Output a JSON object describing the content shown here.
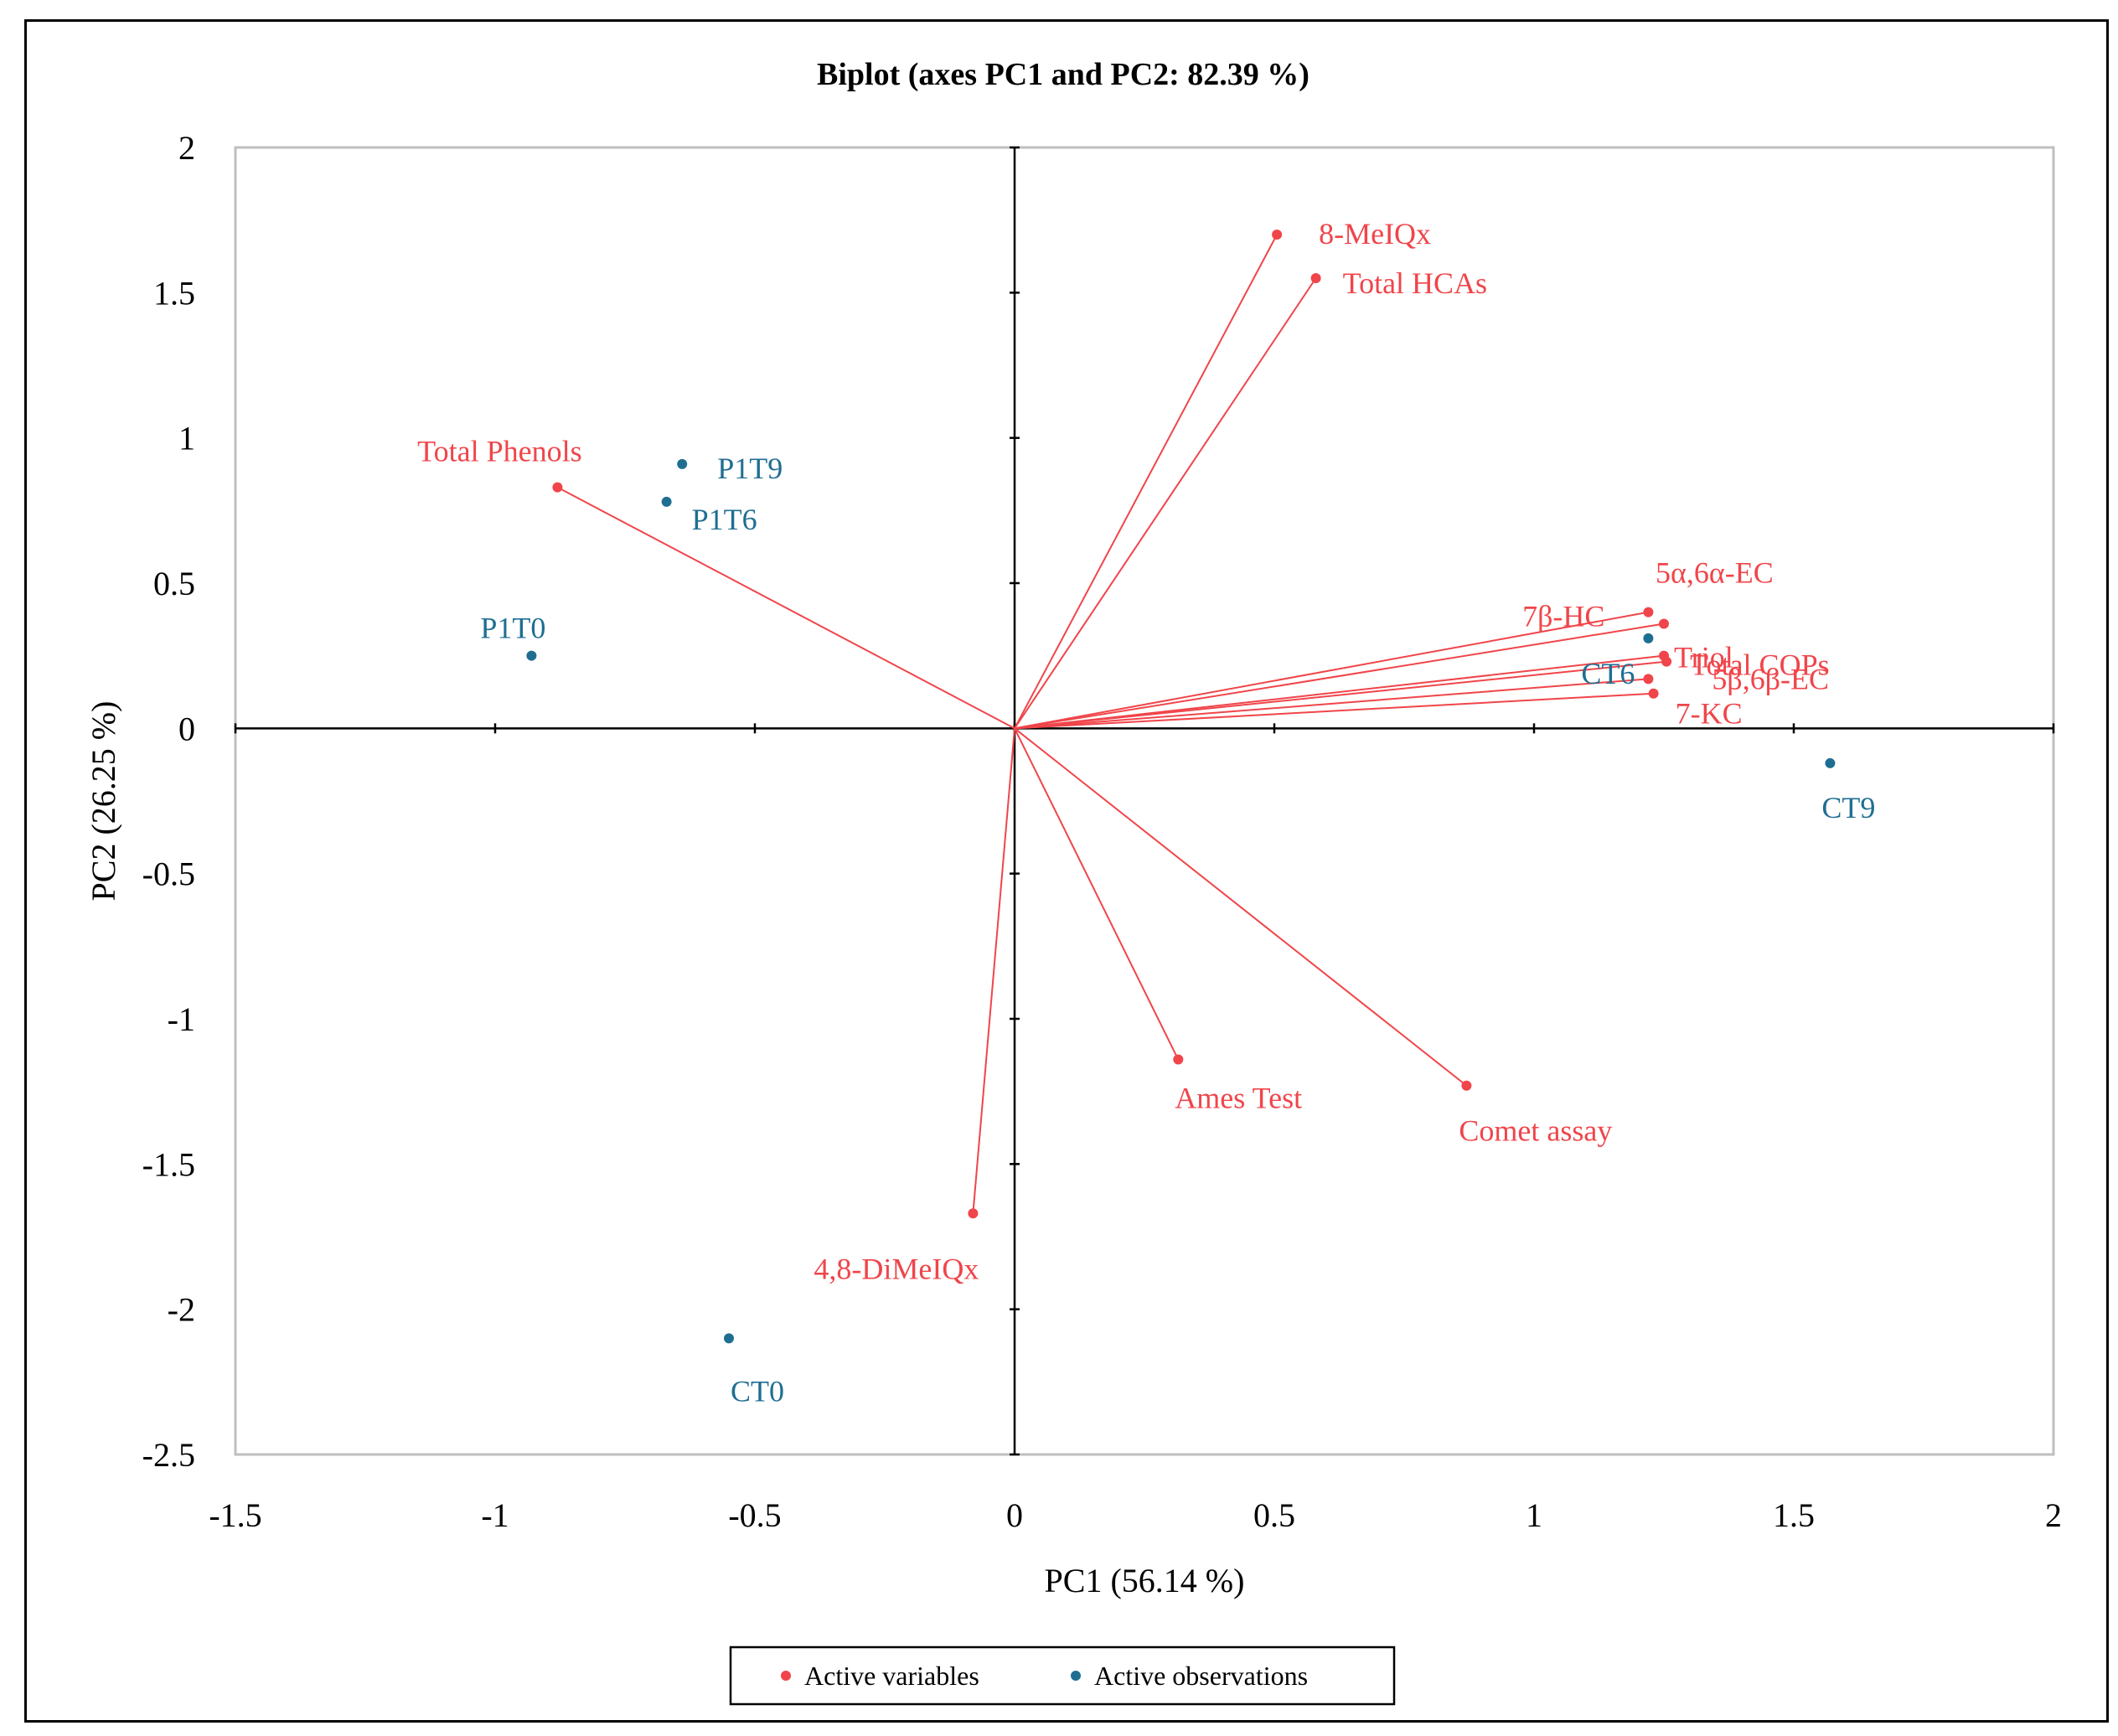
{
  "chart_data": {
    "type": "scatter",
    "title": "Biplot (axes PC1 and PC2: 82.39 %)",
    "xlabel": "PC1 (56.14 %)",
    "ylabel": "PC2 (26.25 %)",
    "xlim": [
      -1.5,
      2
    ],
    "ylim": [
      -2.5,
      2
    ],
    "x_ticks": [
      -1.5,
      -1,
      -0.5,
      0,
      0.5,
      1,
      1.5,
      2
    ],
    "x_tick_labels": [
      "-1.5",
      "-1",
      "-0.5",
      "0",
      "0.5",
      "1",
      "1.5",
      "2"
    ],
    "y_ticks": [
      -2.5,
      -2,
      -1.5,
      -1,
      -0.5,
      0,
      0.5,
      1,
      1.5,
      2
    ],
    "y_tick_labels": [
      "-2.5",
      "-2",
      "-1.5",
      "-1",
      "-0.5",
      "0",
      "0.5",
      "1",
      "1.5",
      "2"
    ],
    "legend": {
      "placement": "bottom-center",
      "items": [
        {
          "label": "Active variables",
          "color": "#f0454a"
        },
        {
          "label": "Active observations",
          "color": "#1f6e92"
        }
      ]
    },
    "series": [
      {
        "name": "Active variables",
        "color": "#f0454a",
        "vectors_from_origin": true,
        "points": [
          {
            "label": "8-MeIQx",
            "x": 0.505,
            "y": 1.7
          },
          {
            "label": "Total HCAs",
            "x": 0.58,
            "y": 1.55
          },
          {
            "label": "Total Phenols",
            "x": -0.88,
            "y": 0.83
          },
          {
            "label": "5α,6α-EC",
            "x": 1.25,
            "y": 0.36
          },
          {
            "label": "7β-HC",
            "x": 1.22,
            "y": 0.4
          },
          {
            "label": "Triol",
            "x": 1.25,
            "y": 0.25
          },
          {
            "label": "Total COPs",
            "x": 1.255,
            "y": 0.23
          },
          {
            "label": "5β,6β-EC",
            "x": 1.22,
            "y": 0.17
          },
          {
            "label": "7-KC",
            "x": 1.23,
            "y": 0.12
          },
          {
            "label": "Ames Test",
            "x": 0.315,
            "y": -1.14
          },
          {
            "label": "Comet assay",
            "x": 0.87,
            "y": -1.23
          },
          {
            "label": "4,8-DiMeIQx",
            "x": -0.08,
            "y": -1.67
          }
        ]
      },
      {
        "name": "Active observations",
        "color": "#1f6e92",
        "points": [
          {
            "label": "P1T9",
            "x": -0.64,
            "y": 0.91
          },
          {
            "label": "P1T6",
            "x": -0.67,
            "y": 0.78
          },
          {
            "label": "P1T0",
            "x": -0.93,
            "y": 0.25
          },
          {
            "label": "CT6",
            "x": 1.22,
            "y": 0.31
          },
          {
            "label": "CT9",
            "x": 1.57,
            "y": -0.12
          },
          {
            "label": "CT0",
            "x": -0.55,
            "y": -2.1
          }
        ]
      }
    ]
  }
}
